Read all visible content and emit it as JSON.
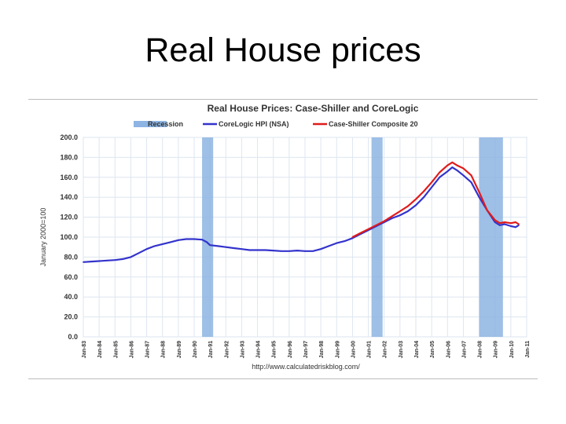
{
  "slide": {
    "title": "Real House prices"
  },
  "chart_data": {
    "type": "line",
    "title": "Real House Prices: Case-Shiller and CoreLogic",
    "ylabel": "January 2000=100",
    "xlabel": "",
    "source": "http://www.calculatedriskblog.com/",
    "ylim": [
      0,
      200
    ],
    "yticks": [
      "0.0",
      "20.0",
      "40.0",
      "60.0",
      "80.0",
      "100.0",
      "120.0",
      "140.0",
      "160.0",
      "180.0",
      "200.0"
    ],
    "xlim": [
      1983,
      2011
    ],
    "xticks": [
      "Jan-83",
      "Jan-84",
      "Jan-85",
      "Jan-86",
      "Jan-87",
      "Jan-88",
      "Jan-89",
      "Jan-90",
      "Jan-91",
      "Jan-92",
      "Jan-93",
      "Jan-94",
      "Jan-95",
      "Jan-96",
      "Jan-97",
      "Jan-98",
      "Jan-99",
      "Jan-00",
      "Jan-01",
      "Jan-02",
      "Jan-03",
      "Jan-04",
      "Jan-05",
      "Jan-06",
      "Jan-07",
      "Jan-08",
      "Jan-09",
      "Jan-10",
      "Jan-11"
    ],
    "grid": true,
    "legend": "top-center",
    "legend_entries": [
      {
        "name": "Recession",
        "kind": "band",
        "color": "#8db4e2"
      },
      {
        "name": "CoreLogic HPI (NSA)",
        "kind": "line",
        "color": "#3333cc"
      },
      {
        "name": "Case-Shiller Composite 20",
        "kind": "line",
        "color": "#e01b1b"
      }
    ],
    "recessions": [
      {
        "start": 1990.5,
        "end": 1991.2
      },
      {
        "start": 2001.2,
        "end": 2001.9
      },
      {
        "start": 2008.0,
        "end": 2009.5
      }
    ],
    "series": [
      {
        "name": "CoreLogic HPI (NSA)",
        "color": "#3333cc",
        "x": [
          1983.0,
          1983.5,
          1984.0,
          1984.5,
          1985.0,
          1985.5,
          1986.0,
          1986.5,
          1987.0,
          1987.5,
          1988.0,
          1988.5,
          1989.0,
          1989.5,
          1990.0,
          1990.5,
          1990.8,
          1991.0,
          1991.5,
          1992.0,
          1992.5,
          1993.0,
          1993.5,
          1994.0,
          1994.5,
          1995.0,
          1995.5,
          1996.0,
          1996.5,
          1997.0,
          1997.5,
          1998.0,
          1998.5,
          1999.0,
          1999.5,
          2000.0,
          2000.5,
          2001.0,
          2001.5,
          2002.0,
          2002.5,
          2003.0,
          2003.5,
          2004.0,
          2004.5,
          2005.0,
          2005.5,
          2006.0,
          2006.3,
          2006.6,
          2007.0,
          2007.5,
          2008.0,
          2008.5,
          2009.0,
          2009.3,
          2009.6,
          2010.0,
          2010.3,
          2010.5
        ],
        "values": [
          75,
          75.5,
          76,
          76.5,
          77,
          78,
          80,
          84,
          88,
          91,
          93,
          95,
          97,
          98,
          98,
          97.5,
          95,
          92,
          91,
          90,
          89,
          88,
          87,
          87,
          87,
          86.5,
          86,
          86,
          86.5,
          86,
          86,
          88,
          91,
          94,
          96,
          99,
          103,
          107,
          111,
          115,
          119,
          122,
          126,
          132,
          140,
          150,
          160,
          166,
          170,
          167,
          162,
          155,
          140,
          127,
          115,
          112,
          113,
          111,
          110,
          112
        ]
      },
      {
        "name": "Case-Shiller Composite 20",
        "color": "#e01b1b",
        "x": [
          2000.0,
          2000.5,
          2001.0,
          2001.5,
          2002.0,
          2002.5,
          2003.0,
          2003.5,
          2004.0,
          2004.5,
          2005.0,
          2005.5,
          2006.0,
          2006.3,
          2006.6,
          2007.0,
          2007.5,
          2008.0,
          2008.5,
          2009.0,
          2009.3,
          2009.6,
          2010.0,
          2010.3,
          2010.5
        ],
        "values": [
          100,
          104,
          108,
          112,
          116,
          121,
          126,
          131,
          138,
          146,
          155,
          165,
          172,
          175,
          172,
          169,
          162,
          145,
          127,
          117,
          114,
          115,
          114,
          115,
          113
        ]
      }
    ]
  }
}
